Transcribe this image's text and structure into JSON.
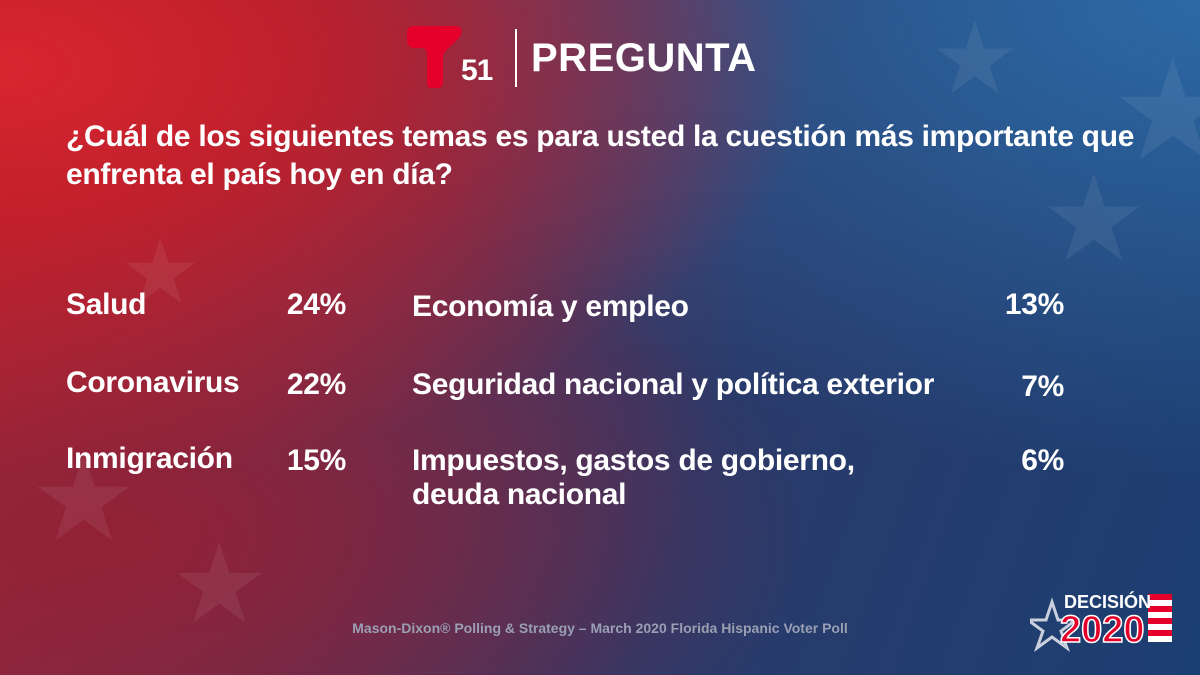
{
  "header": {
    "logo_number": "51",
    "title": "PREGUNTA"
  },
  "question": "¿Cuál de los siguientes temas es para usted la cuestión más importante que enfrenta el país hoy en día?",
  "results_left": [
    {
      "label": "Salud",
      "value": "24%"
    },
    {
      "label": "Coronavirus",
      "value": "22%"
    },
    {
      "label": "Inmigración",
      "value": "15%"
    }
  ],
  "results_right": [
    {
      "label": "Economía y empleo",
      "value": "13%"
    },
    {
      "label": "Seguridad nacional y política exterior",
      "value": "7%"
    },
    {
      "label_line1": "Impuestos, gastos de gobierno,",
      "label_line2": "deuda nacional",
      "value": "6%"
    }
  ],
  "footer": "Mason-Dixon® Polling & Strategy – March 2020 Florida Hispanic Voter Poll",
  "badge": {
    "top": "DECISIÓN",
    "year": "2020"
  },
  "colors": {
    "brand_red": "#e4002b",
    "text": "#ffffff",
    "footer_text": "#9a9fb3"
  }
}
